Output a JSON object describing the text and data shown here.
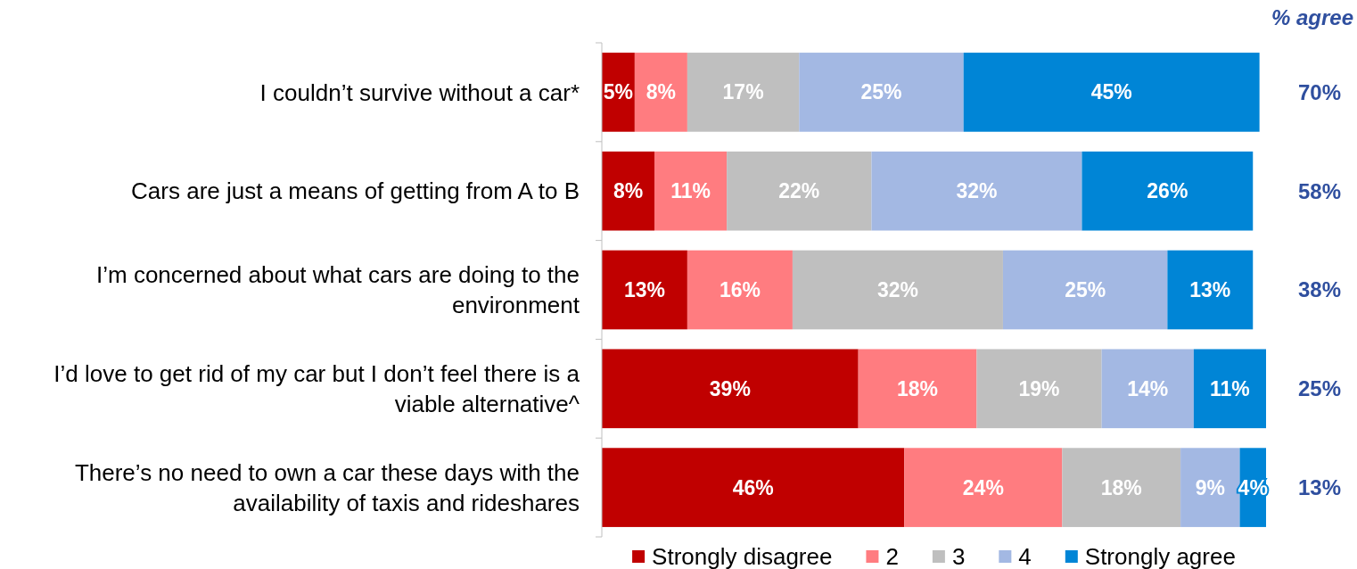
{
  "chart_data": {
    "type": "bar",
    "orientation": "horizontal",
    "stacked": true,
    "xlim": [
      0,
      101
    ],
    "tick_labels": "y",
    "legend": "bottom",
    "categories": [
      "I couldn’t survive without a car*",
      "Cars are just a means of getting from A to B",
      "I’m concerned about what cars are doing to the environment",
      "I’d love to get rid of my car but I don’t feel there is a viable alternative^",
      "There’s no need to own a car these days with the availability of taxis and rideshares"
    ],
    "series": [
      {
        "name": "Strongly disagree",
        "color": "#c00000",
        "values": [
          5,
          8,
          13,
          39,
          46
        ],
        "value_labels": [
          "5%",
          "8%",
          "13%",
          "39%",
          "46%"
        ]
      },
      {
        "name": "2",
        "color": "#ff7c80",
        "values": [
          8,
          11,
          16,
          18,
          24
        ],
        "value_labels": [
          "8%",
          "11%",
          "16%",
          "18%",
          "24%"
        ]
      },
      {
        "name": "3",
        "color": "#bfbfbf",
        "values": [
          17,
          22,
          32,
          19,
          18
        ],
        "value_labels": [
          "17%",
          "22%",
          "32%",
          "19%",
          "18%"
        ]
      },
      {
        "name": "4",
        "color": "#a3b8e3",
        "values": [
          25,
          32,
          25,
          14,
          9
        ],
        "value_labels": [
          "25%",
          "32%",
          "25%",
          "14%",
          "9%"
        ]
      },
      {
        "name": "Strongly agree",
        "color": "#0085d6",
        "values": [
          45,
          26,
          13,
          11,
          4
        ],
        "value_labels": [
          "45%",
          "26%",
          "13%",
          "11%",
          "4%"
        ]
      }
    ],
    "annotations": [
      "% agree",
      "70%",
      "58%",
      "38%",
      "25%",
      "13%"
    ]
  }
}
